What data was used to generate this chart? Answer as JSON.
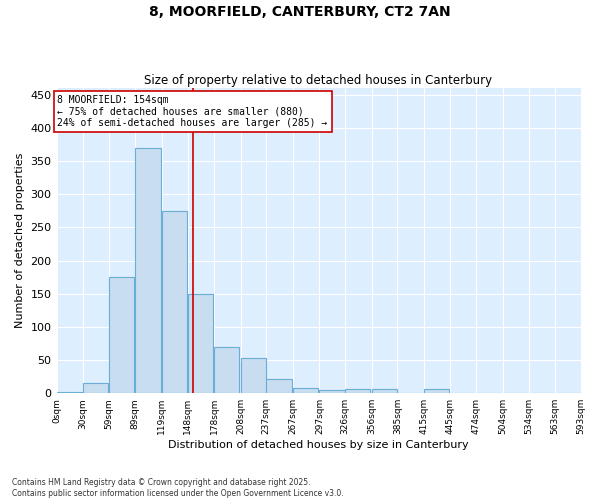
{
  "title": "8, MOORFIELD, CANTERBURY, CT2 7AN",
  "subtitle": "Size of property relative to detached houses in Canterbury",
  "xlabel": "Distribution of detached houses by size in Canterbury",
  "ylabel": "Number of detached properties",
  "bar_color": "#c8ddf0",
  "bar_edge_color": "#6aaed6",
  "annotation_box_color": "#cc0000",
  "vline_color": "#cc0000",
  "background_color": "#ddeeff",
  "grid_color": "#ffffff",
  "footer_line1": "Contains HM Land Registry data © Crown copyright and database right 2025.",
  "footer_line2": "Contains public sector information licensed under the Open Government Licence v3.0.",
  "annotation_line1": "8 MOORFIELD: 154sqm",
  "annotation_line2": "← 75% of detached houses are smaller (880)",
  "annotation_line3": "24% of semi-detached houses are larger (285) →",
  "property_size": 154,
  "bin_width": 29,
  "bin_starts": [
    0,
    30,
    59,
    89,
    119,
    148,
    178,
    208,
    237,
    267,
    297,
    326,
    356,
    385,
    415,
    445,
    474,
    504,
    534,
    563
  ],
  "bin_labels": [
    "0sqm",
    "30sqm",
    "59sqm",
    "89sqm",
    "119sqm",
    "148sqm",
    "178sqm",
    "208sqm",
    "237sqm",
    "267sqm",
    "297sqm",
    "326sqm",
    "356sqm",
    "385sqm",
    "415sqm",
    "445sqm",
    "474sqm",
    "504sqm",
    "534sqm",
    "563sqm",
    "593sqm"
  ],
  "counts": [
    2,
    15,
    175,
    370,
    275,
    150,
    70,
    53,
    22,
    8,
    5,
    6,
    6,
    0,
    6,
    0,
    0,
    0,
    1,
    0
  ],
  "ylim": [
    0,
    460
  ],
  "yticks": [
    0,
    50,
    100,
    150,
    200,
    250,
    300,
    350,
    400,
    450
  ]
}
